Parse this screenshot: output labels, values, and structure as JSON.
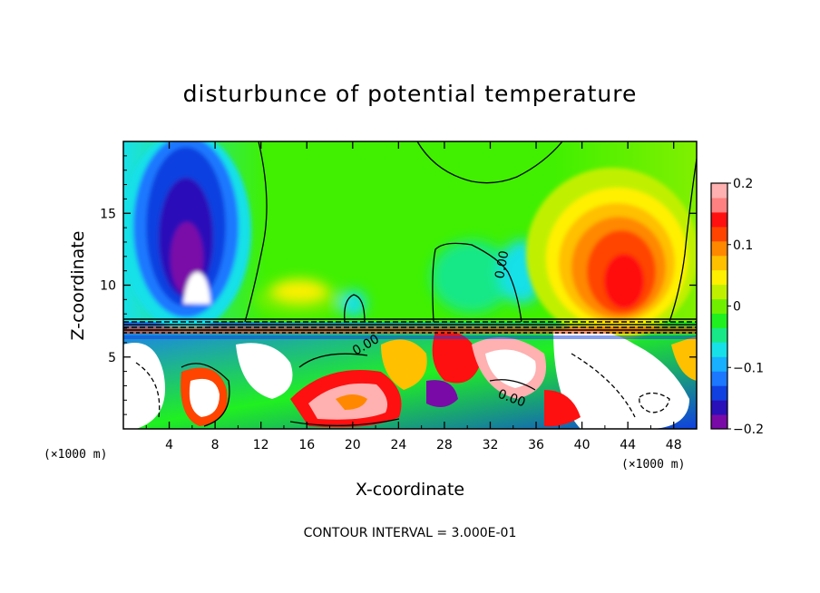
{
  "chart_data": {
    "type": "heatmap",
    "title": "disturbunce of potential temperature",
    "xlabel": "X-coordinate",
    "ylabel": "Z-coordinate",
    "x_unit": "(×1000 m)",
    "z_unit": "(×1000 m)",
    "xlim": [
      0,
      50
    ],
    "ylim": [
      0,
      20
    ],
    "x_ticks": [
      "4",
      "8",
      "12",
      "16",
      "20",
      "24",
      "28",
      "32",
      "36",
      "40",
      "44",
      "48"
    ],
    "y_ticks": [
      "5",
      "10",
      "15"
    ],
    "colorbar": {
      "range": [
        -0.2,
        0.2
      ],
      "tick_labels": [
        "0.2",
        "0.1",
        "0",
        "−0.1",
        "−0.2"
      ],
      "colors": [
        "#7a0aa8",
        "#2a10b8",
        "#1040e0",
        "#1c78ff",
        "#18b0ff",
        "#18e0e8",
        "#18e888",
        "#20f020",
        "#70f000",
        "#c0f000",
        "#fff000",
        "#ffc000",
        "#ff8800",
        "#ff4400",
        "#ff1010",
        "#ff8080",
        "#ffb0b0"
      ]
    },
    "contour_labels": [
      "0.00",
      "0.00",
      "0.00"
    ],
    "contour_interval_note": "CONTOUR INTERVAL = 3.000E-01"
  }
}
